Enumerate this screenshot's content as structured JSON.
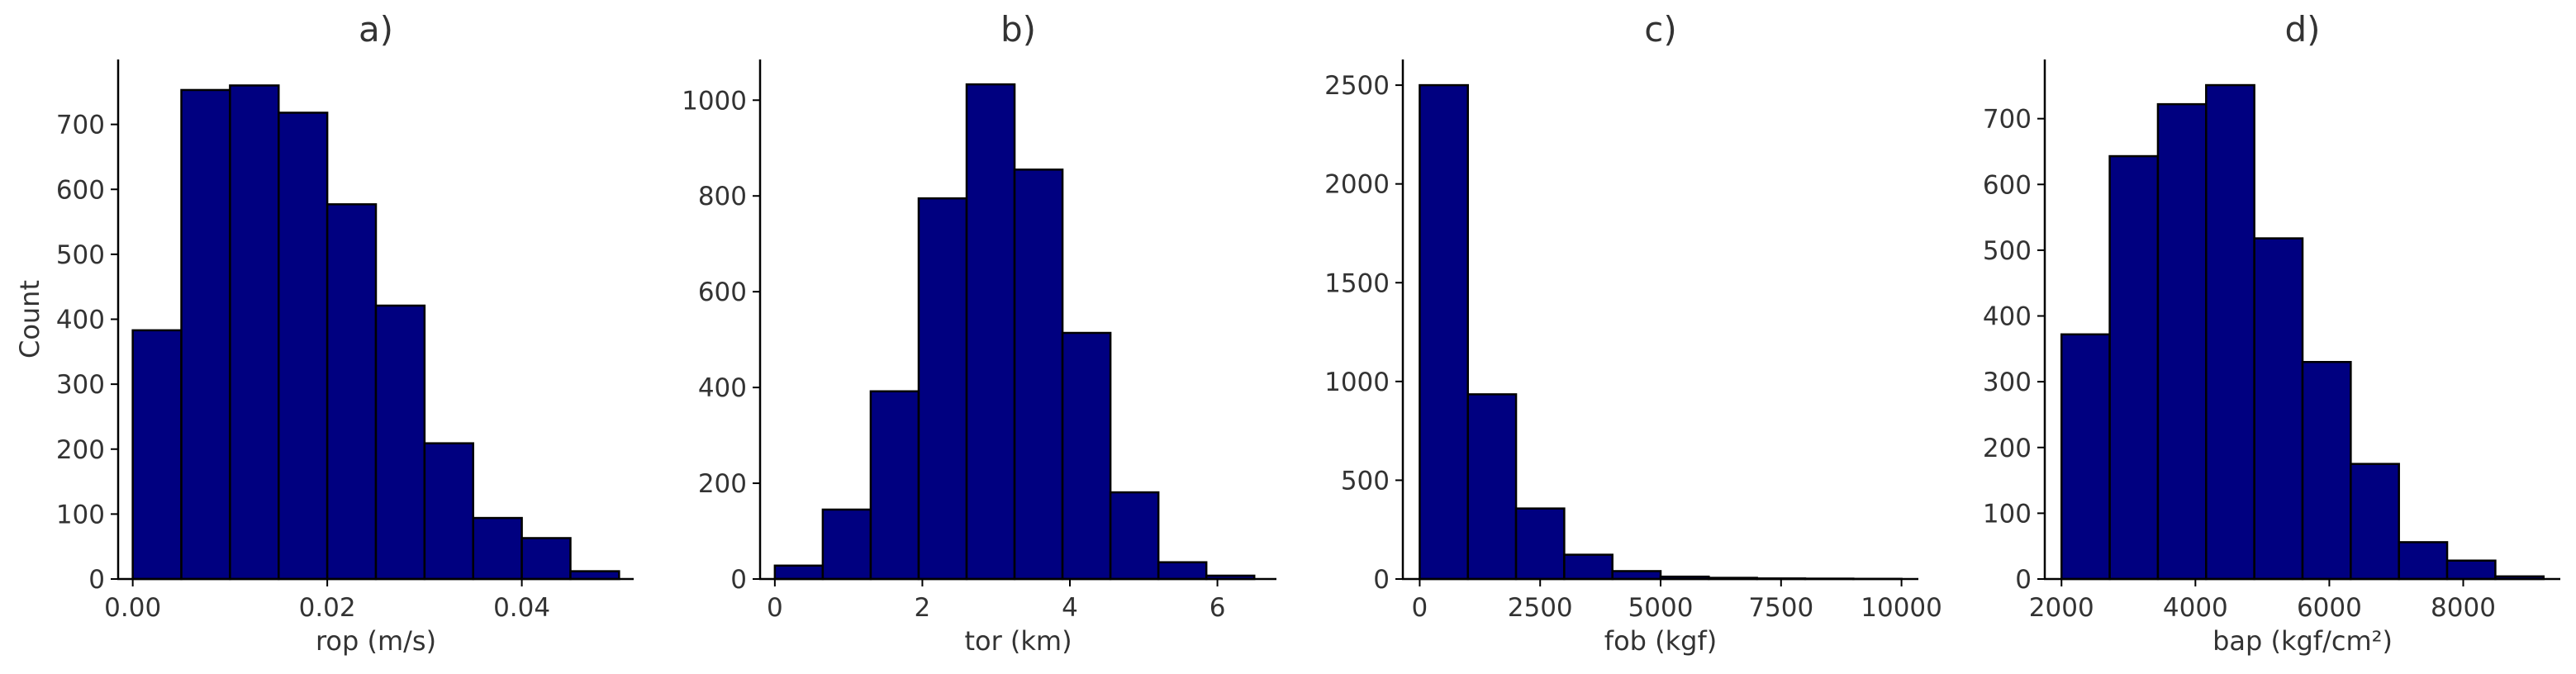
{
  "chart_data": [
    {
      "type": "bar",
      "title": "a)",
      "xlabel": "rop (m/s)",
      "ylabel": "Count",
      "bin_edges": [
        0.0,
        0.005,
        0.01,
        0.015,
        0.02,
        0.025,
        0.03,
        0.035,
        0.04,
        0.045,
        0.05
      ],
      "values": [
        383,
        753,
        760,
        718,
        577,
        421,
        209,
        94,
        63,
        12
      ],
      "xlim": [
        -0.0015,
        0.0515
      ],
      "ylim": [
        0,
        800
      ],
      "xticks": [
        0.0,
        0.02,
        0.04
      ],
      "xtick_labels": [
        "0.00",
        "0.02",
        "0.04"
      ],
      "yticks": [
        0,
        100,
        200,
        300,
        400,
        500,
        600,
        700
      ],
      "ytick_labels": [
        "0",
        "100",
        "200",
        "300",
        "400",
        "500",
        "600",
        "700"
      ],
      "bar_color": "#000080",
      "edge_color": "#000000"
    },
    {
      "type": "bar",
      "title": "b)",
      "xlabel": "tor (km)",
      "ylabel": "",
      "bin_edges": [
        0.0,
        0.65,
        1.3,
        1.95,
        2.6,
        3.25,
        3.9,
        4.55,
        5.2,
        5.85,
        6.5
      ],
      "values": [
        28,
        145,
        392,
        795,
        1033,
        855,
        514,
        181,
        35,
        7
      ],
      "xlim": [
        -0.2,
        6.8
      ],
      "ylim": [
        0,
        1085
      ],
      "xticks": [
        0,
        2,
        4,
        6
      ],
      "xtick_labels": [
        "0",
        "2",
        "4",
        "6"
      ],
      "yticks": [
        0,
        200,
        400,
        600,
        800,
        1000
      ],
      "ytick_labels": [
        "0",
        "200",
        "400",
        "600",
        "800",
        "1000"
      ],
      "bar_color": "#000080",
      "edge_color": "#000000"
    },
    {
      "type": "bar",
      "title": "c)",
      "xlabel": "fob (kgf)",
      "ylabel": "",
      "bin_edges": [
        0,
        1000,
        2000,
        3000,
        4000,
        5000,
        6000,
        7000,
        8000,
        9000,
        10000
      ],
      "values": [
        2500,
        935,
        357,
        123,
        40,
        12,
        6,
        3,
        2,
        1
      ],
      "xlim": [
        -350,
        10350
      ],
      "ylim": [
        0,
        2630
      ],
      "xticks": [
        0,
        2500,
        5000,
        7500,
        10000
      ],
      "xtick_labels": [
        "0",
        "2500",
        "5000",
        "7500",
        "10000"
      ],
      "yticks": [
        0,
        500,
        1000,
        1500,
        2000,
        2500
      ],
      "ytick_labels": [
        "0",
        "500",
        "1000",
        "1500",
        "2000",
        "2500"
      ],
      "bar_color": "#000080",
      "edge_color": "#000000"
    },
    {
      "type": "bar",
      "title": "d)",
      "xlabel": "bap (kgf/cm²)",
      "ylabel": "",
      "bin_edges": [
        2000,
        2720,
        3440,
        4160,
        4880,
        5600,
        6320,
        7040,
        7760,
        8480,
        9200
      ],
      "values": [
        372,
        643,
        722,
        751,
        518,
        330,
        175,
        56,
        28,
        4
      ],
      "xlim": [
        1750,
        9450
      ],
      "ylim": [
        0,
        790
      ],
      "xticks": [
        2000,
        4000,
        6000,
        8000
      ],
      "xtick_labels": [
        "2000",
        "4000",
        "6000",
        "8000"
      ],
      "yticks": [
        0,
        100,
        200,
        300,
        400,
        500,
        600,
        700
      ],
      "ytick_labels": [
        "0",
        "100",
        "200",
        "300",
        "400",
        "500",
        "600",
        "700"
      ],
      "bar_color": "#000080",
      "edge_color": "#000000"
    }
  ]
}
